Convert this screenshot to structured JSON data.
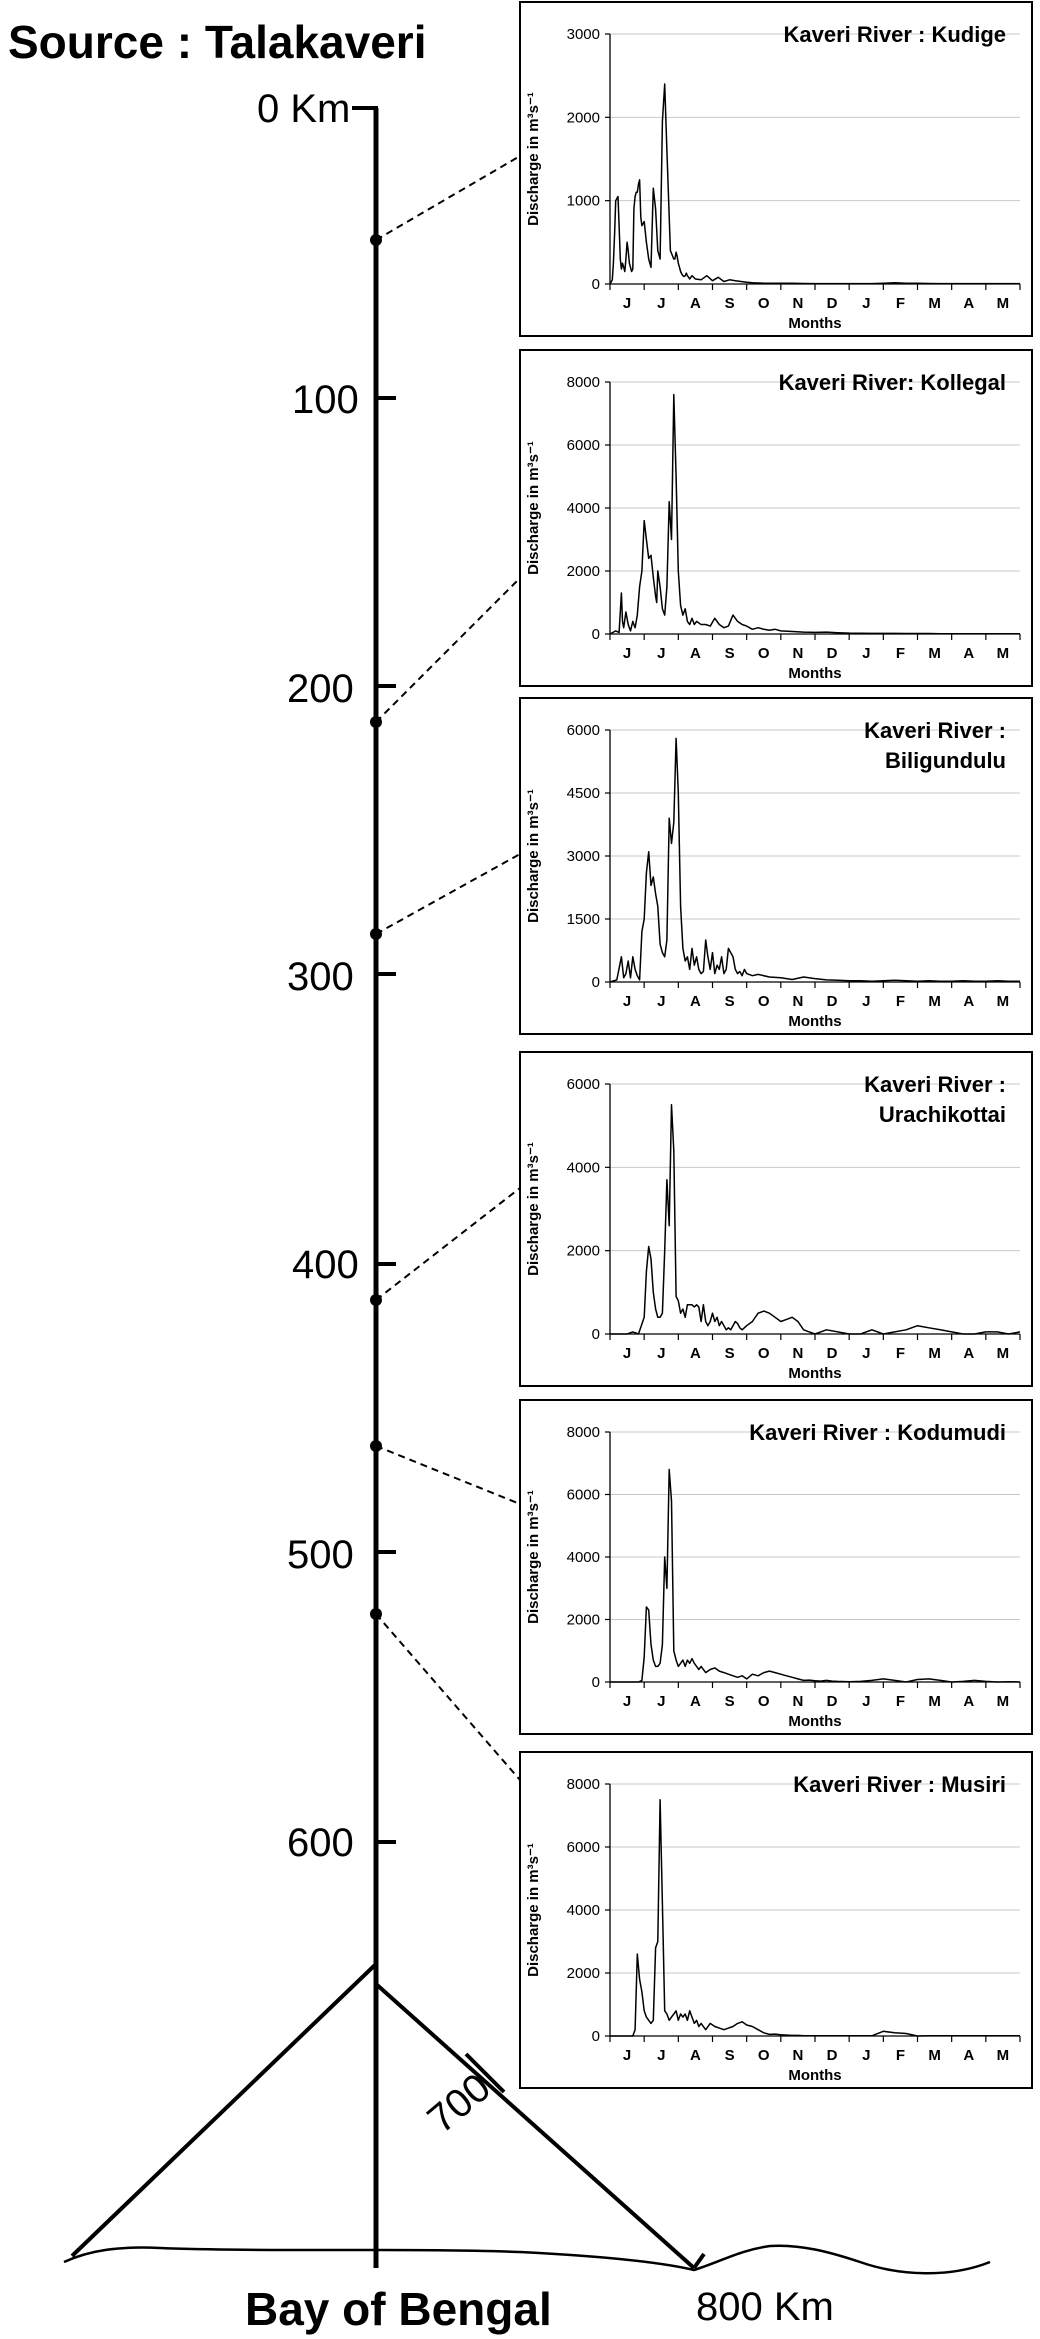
{
  "diagram": {
    "source_label": "Source : Talakaveri",
    "mouth_label": "Bay of Bengal",
    "km_labels": [
      "0 Km",
      "100",
      "200",
      "300",
      "400",
      "500",
      "600",
      "700",
      "800 Km"
    ]
  },
  "chart_data": [
    {
      "type": "line",
      "title_lines": [
        "Kaveri River : Kudige"
      ],
      "ylabel": "Discharge in m³s⁻¹",
      "xlabel": "Months",
      "categories": [
        "J",
        "J",
        "A",
        "S",
        "O",
        "N",
        "D",
        "J",
        "F",
        "M",
        "A",
        "M"
      ],
      "yticks": [
        0,
        1000,
        2000,
        3000
      ],
      "ylim": [
        0,
        3000
      ],
      "series": [
        {
          "x": [
            0,
            2,
            3,
            4,
            5,
            7,
            8,
            9,
            10,
            11,
            12,
            13,
            14,
            15,
            16,
            17,
            18,
            19,
            20,
            21,
            22,
            23,
            24,
            25,
            26,
            27,
            28,
            30,
            32,
            34,
            36,
            38,
            40,
            42,
            44,
            46,
            48,
            50,
            53,
            56,
            57,
            58,
            59,
            60,
            61,
            62,
            63,
            64,
            65,
            66,
            67,
            68,
            69,
            70,
            72,
            75,
            80,
            85,
            90,
            95,
            100,
            105,
            110,
            115,
            120,
            125,
            130,
            135,
            140,
            150,
            160,
            170,
            180,
            190,
            200,
            210,
            220,
            230,
            240,
            250,
            260,
            270,
            280,
            290,
            300,
            310,
            320,
            330,
            340,
            350,
            360
          ],
          "values": [
            0,
            50,
            250,
            600,
            1000,
            1050,
            700,
            300,
            180,
            250,
            200,
            150,
            300,
            500,
            400,
            250,
            200,
            150,
            180,
            900,
            1050,
            1100,
            1100,
            1200,
            1250,
            800,
            700,
            750,
            500,
            300,
            200,
            1150,
            900,
            400,
            300,
            1950,
            2400,
            1600,
            400,
            300,
            300,
            380,
            330,
            250,
            200,
            150,
            120,
            100,
            90,
            100,
            130,
            100,
            80,
            60,
            100,
            60,
            50,
            100,
            40,
            80,
            30,
            50,
            40,
            30,
            20,
            15,
            12,
            10,
            10,
            8,
            8,
            6,
            5,
            5,
            5,
            5,
            5,
            5,
            10,
            15,
            10,
            8,
            6,
            5,
            5,
            5,
            5,
            5,
            5,
            5,
            5
          ]
        }
      ]
    },
    {
      "type": "line",
      "title_lines": [
        "Kaveri River: Kollegal"
      ],
      "ylabel": "Discharge in m³s⁻¹",
      "xlabel": "Months",
      "categories": [
        "J",
        "J",
        "A",
        "S",
        "O",
        "N",
        "D",
        "J",
        "F",
        "M",
        "A",
        "M"
      ],
      "yticks": [
        0,
        2000,
        4000,
        6000,
        8000
      ],
      "ylim": [
        0,
        8000
      ],
      "series": [
        {
          "x": [
            0,
            5,
            8,
            10,
            11,
            12,
            14,
            16,
            18,
            20,
            22,
            24,
            26,
            28,
            30,
            32,
            34,
            36,
            38,
            40,
            41,
            42,
            44,
            46,
            48,
            50,
            52,
            54,
            56,
            58,
            60,
            62,
            64,
            66,
            68,
            70,
            72,
            74,
            76,
            78,
            80,
            84,
            88,
            92,
            96,
            100,
            104,
            108,
            112,
            116,
            120,
            125,
            130,
            135,
            140,
            145,
            150,
            160,
            170,
            180,
            190,
            200,
            210,
            220,
            230,
            240,
            250,
            260,
            270,
            280,
            290,
            300,
            310,
            320,
            330,
            340,
            350,
            360
          ],
          "values": [
            0,
            100,
            50,
            1300,
            400,
            200,
            700,
            300,
            100,
            400,
            200,
            600,
            1500,
            2000,
            3600,
            3000,
            2400,
            2500,
            1800,
            1200,
            1000,
            2000,
            1500,
            800,
            600,
            1500,
            4200,
            3000,
            7600,
            5000,
            2000,
            900,
            600,
            800,
            400,
            300,
            500,
            300,
            400,
            350,
            300,
            300,
            250,
            500,
            300,
            200,
            250,
            600,
            400,
            300,
            250,
            150,
            200,
            150,
            120,
            150,
            100,
            80,
            60,
            50,
            60,
            40,
            30,
            25,
            20,
            20,
            20,
            15,
            15,
            15,
            10,
            10,
            10,
            10,
            10,
            10,
            10,
            10
          ]
        }
      ]
    },
    {
      "type": "line",
      "title_lines": [
        "Kaveri River :",
        "Biligundulu"
      ],
      "ylabel": "Discharge in m³s⁻¹",
      "xlabel": "Months",
      "categories": [
        "J",
        "J",
        "A",
        "S",
        "O",
        "N",
        "D",
        "J",
        "F",
        "M",
        "A",
        "M"
      ],
      "yticks": [
        0,
        1500,
        3000,
        4500,
        6000
      ],
      "ylim": [
        0,
        6000
      ],
      "series": [
        {
          "x": [
            0,
            6,
            10,
            12,
            14,
            16,
            18,
            20,
            22,
            24,
            26,
            28,
            30,
            32,
            34,
            36,
            38,
            40,
            42,
            44,
            46,
            48,
            50,
            52,
            54,
            56,
            58,
            60,
            62,
            64,
            66,
            68,
            70,
            72,
            74,
            76,
            78,
            80,
            82,
            84,
            86,
            88,
            90,
            92,
            94,
            96,
            98,
            100,
            102,
            104,
            106,
            108,
            110,
            112,
            114,
            116,
            118,
            120,
            125,
            130,
            140,
            150,
            160,
            170,
            180,
            190,
            200,
            210,
            220,
            230,
            240,
            250,
            260,
            270,
            280,
            290,
            300,
            310,
            320,
            330,
            340,
            350,
            360
          ],
          "values": [
            0,
            50,
            600,
            100,
            200,
            500,
            100,
            600,
            300,
            150,
            50,
            1200,
            1500,
            2600,
            3100,
            2300,
            2500,
            2100,
            1800,
            900,
            700,
            600,
            1000,
            3900,
            3300,
            3800,
            5800,
            4500,
            1800,
            800,
            500,
            600,
            300,
            800,
            400,
            600,
            300,
            200,
            250,
            1000,
            600,
            300,
            700,
            200,
            400,
            300,
            600,
            200,
            300,
            800,
            700,
            600,
            300,
            200,
            250,
            150,
            300,
            200,
            150,
            180,
            120,
            100,
            60,
            120,
            80,
            50,
            40,
            30,
            30,
            20,
            30,
            40,
            30,
            20,
            30,
            20,
            20,
            30,
            20,
            20,
            30,
            20,
            20
          ]
        }
      ]
    },
    {
      "type": "line",
      "title_lines": [
        "Kaveri River :",
        "Urachikottai"
      ],
      "ylabel": "Discharge in m³s⁻¹",
      "xlabel": "Months",
      "categories": [
        "J",
        "J",
        "A",
        "S",
        "O",
        "N",
        "D",
        "J",
        "F",
        "M",
        "A",
        "M"
      ],
      "yticks": [
        0,
        2000,
        4000,
        6000
      ],
      "ylim": [
        0,
        6000
      ],
      "series": [
        {
          "x": [
            0,
            15,
            20,
            25,
            30,
            32,
            34,
            36,
            38,
            40,
            42,
            44,
            46,
            48,
            50,
            52,
            54,
            56,
            58,
            60,
            62,
            64,
            66,
            68,
            70,
            72,
            74,
            76,
            78,
            80,
            82,
            84,
            86,
            88,
            90,
            92,
            94,
            96,
            98,
            100,
            102,
            104,
            106,
            108,
            110,
            112,
            114,
            116,
            120,
            125,
            130,
            135,
            140,
            145,
            150,
            155,
            160,
            165,
            170,
            175,
            180,
            185,
            190,
            200,
            210,
            220,
            230,
            240,
            250,
            260,
            270,
            280,
            290,
            300,
            310,
            320,
            330,
            340,
            350,
            360
          ],
          "values": [
            0,
            0,
            50,
            0,
            400,
            1500,
            2100,
            1800,
            1000,
            600,
            400,
            400,
            500,
            2000,
            3700,
            2600,
            5500,
            4400,
            900,
            800,
            500,
            600,
            400,
            700,
            700,
            700,
            650,
            700,
            650,
            300,
            700,
            300,
            200,
            300,
            500,
            300,
            400,
            200,
            300,
            200,
            100,
            150,
            100,
            200,
            300,
            250,
            150,
            100,
            200,
            300,
            500,
            550,
            500,
            400,
            300,
            350,
            400,
            300,
            100,
            50,
            0,
            50,
            100,
            50,
            0,
            0,
            100,
            0,
            50,
            100,
            200,
            150,
            100,
            50,
            0,
            0,
            50,
            50,
            0,
            50
          ]
        }
      ]
    },
    {
      "type": "line",
      "title_lines": [
        "Kaveri River : Kodumudi"
      ],
      "ylabel": "Discharge in m³s⁻¹",
      "xlabel": "Months",
      "categories": [
        "J",
        "J",
        "A",
        "S",
        "O",
        "N",
        "D",
        "J",
        "F",
        "M",
        "A",
        "M"
      ],
      "yticks": [
        0,
        2000,
        4000,
        6000,
        8000
      ],
      "ylim": [
        0,
        8000
      ],
      "series": [
        {
          "x": [
            0,
            25,
            28,
            30,
            32,
            34,
            36,
            38,
            40,
            42,
            44,
            46,
            48,
            50,
            52,
            54,
            56,
            58,
            60,
            62,
            64,
            66,
            68,
            70,
            72,
            74,
            76,
            78,
            80,
            84,
            88,
            92,
            96,
            100,
            104,
            108,
            112,
            116,
            120,
            125,
            130,
            135,
            140,
            145,
            150,
            155,
            160,
            165,
            170,
            175,
            180,
            185,
            190,
            195,
            200,
            210,
            220,
            230,
            240,
            250,
            260,
            270,
            280,
            290,
            300,
            310,
            320,
            330,
            340,
            350,
            360
          ],
          "values": [
            0,
            0,
            50,
            800,
            2400,
            2300,
            1200,
            700,
            500,
            500,
            600,
            1200,
            4000,
            3000,
            6800,
            5800,
            1000,
            700,
            500,
            600,
            700,
            500,
            700,
            600,
            750,
            600,
            500,
            400,
            500,
            300,
            400,
            450,
            350,
            300,
            250,
            200,
            150,
            200,
            100,
            250,
            200,
            300,
            350,
            300,
            250,
            200,
            150,
            100,
            50,
            60,
            40,
            30,
            50,
            30,
            20,
            10,
            20,
            50,
            100,
            50,
            0,
            80,
            100,
            50,
            0,
            20,
            50,
            20,
            0,
            10,
            0
          ]
        }
      ]
    },
    {
      "type": "line",
      "title_lines": [
        "Kaveri River : Musiri"
      ],
      "ylabel": "Discharge in m³s⁻¹",
      "xlabel": "Months",
      "categories": [
        "J",
        "J",
        "A",
        "S",
        "O",
        "N",
        "D",
        "J",
        "F",
        "M",
        "A",
        "M"
      ],
      "yticks": [
        0,
        2000,
        4000,
        6000,
        8000
      ],
      "ylim": [
        0,
        8000
      ],
      "series": [
        {
          "x": [
            0,
            20,
            22,
            24,
            26,
            28,
            30,
            32,
            34,
            36,
            38,
            40,
            42,
            44,
            46,
            48,
            50,
            52,
            54,
            56,
            58,
            60,
            62,
            64,
            66,
            68,
            70,
            72,
            74,
            76,
            78,
            80,
            84,
            88,
            92,
            96,
            100,
            104,
            108,
            112,
            116,
            120,
            125,
            130,
            135,
            140,
            145,
            150,
            155,
            160,
            165,
            170,
            175,
            180,
            190,
            200,
            210,
            220,
            230,
            240,
            250,
            260,
            270,
            280,
            290,
            300,
            310,
            320,
            330,
            340,
            350,
            360
          ],
          "values": [
            0,
            0,
            200,
            2600,
            1800,
            1400,
            800,
            600,
            500,
            400,
            500,
            2800,
            3000,
            7500,
            4200,
            800,
            700,
            500,
            600,
            700,
            800,
            500,
            700,
            600,
            700,
            500,
            800,
            600,
            400,
            500,
            300,
            400,
            200,
            400,
            300,
            250,
            200,
            250,
            300,
            400,
            450,
            350,
            300,
            200,
            100,
            50,
            60,
            40,
            30,
            20,
            20,
            10,
            5,
            5,
            5,
            5,
            10,
            5,
            5,
            150,
            100,
            80,
            0,
            5,
            5,
            5,
            5,
            5,
            5,
            5,
            5,
            5
          ]
        }
      ]
    }
  ]
}
